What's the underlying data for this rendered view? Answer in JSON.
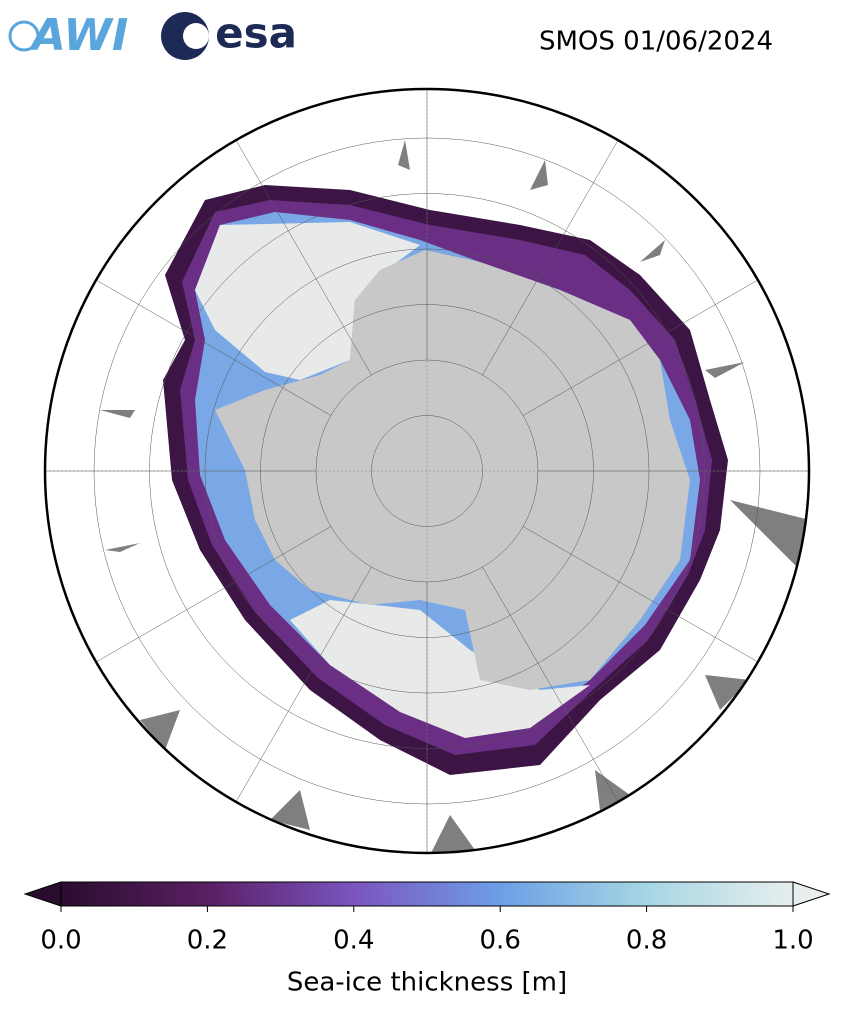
{
  "logos": {
    "awi": "AWI",
    "esa": "esa"
  },
  "map": {
    "title": "SMOS 01/06/2024",
    "colorbar": {
      "label": "Sea-ice thickness [m]",
      "lim": [
        0,
        1
      ],
      "ticks": [
        {
          "value": 0,
          "label": "0.0"
        },
        {
          "value": 0.2,
          "label": "0.2"
        },
        {
          "value": 0.4,
          "label": "0.4"
        },
        {
          "value": 0.6,
          "label": "0.6"
        },
        {
          "value": 0.8,
          "label": "0.8"
        },
        {
          "value": 1,
          "label": "1.0"
        }
      ],
      "colors": [
        "#2a0d2e",
        "#5a1f63",
        "#7a55c0",
        "#6c9fe6",
        "#a6d6e3",
        "#e8eeee"
      ]
    }
  }
}
